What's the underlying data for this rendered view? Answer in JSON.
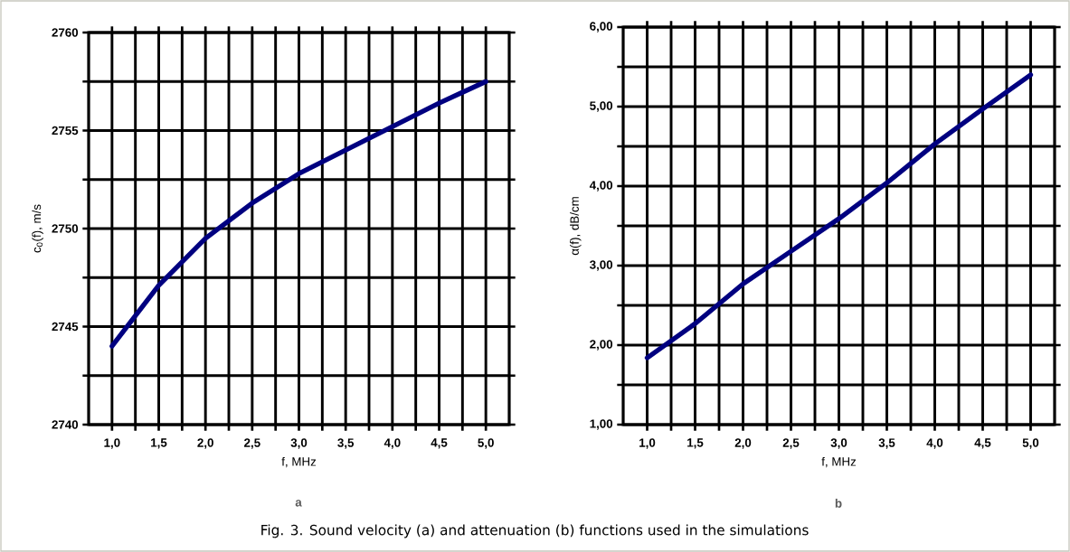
{
  "chart_data": [
    {
      "type": "line",
      "xlabel": "f, MHz",
      "ylabel": "c$_{0}$(f), m/s",
      "annotations": [
        "a"
      ],
      "x": [
        1.0,
        1.5,
        2.0,
        2.5,
        3.0,
        3.5,
        4.0,
        4.5,
        5.0
      ],
      "series": [
        {
          "color": "#000080",
          "values": [
            2744.0,
            2747.1,
            2749.5,
            2751.3,
            2752.8,
            2754.0,
            2755.2,
            2756.4,
            2757.5
          ]
        }
      ],
      "xlim": [
        0.75,
        5.25
      ],
      "xticks": [
        {
          "value": 1.0,
          "label": "1,0"
        },
        {
          "value": 1.5,
          "label": "1,5"
        },
        {
          "value": 2.0,
          "label": "2,0"
        },
        {
          "value": 2.5,
          "label": "2,5"
        },
        {
          "value": 3.0,
          "label": "3,0"
        },
        {
          "value": 3.5,
          "label": "3,5"
        },
        {
          "value": 4.0,
          "label": "4,0"
        },
        {
          "value": 4.5,
          "label": "4,5"
        },
        {
          "value": 5.0,
          "label": "5,0"
        }
      ],
      "ylim": [
        2740,
        2760
      ],
      "yticks": [
        2740,
        2745,
        2750,
        2755,
        2760
      ],
      "grid": true,
      "marker": "none",
      "line_style": "solid"
    },
    {
      "type": "line",
      "xlabel": "f, MHz",
      "ylabel": "α(f), dB/cm",
      "annotations": [
        "b",
        "Fig. 3. Sound velocity (a) and attenuation (b) functions used in the simulations"
      ],
      "x": [
        1.0,
        1.5,
        2.0,
        2.5,
        3.0,
        3.5,
        4.0,
        4.5,
        5.0
      ],
      "series": [
        {
          "color": "#000080",
          "values": [
            1.84,
            2.27,
            2.77,
            3.18,
            3.59,
            4.04,
            4.53,
            4.97,
            5.4
          ]
        }
      ],
      "xlim": [
        0.75,
        5.25
      ],
      "xticks": [
        {
          "value": 1.0,
          "label": "1,0"
        },
        {
          "value": 1.5,
          "label": "1,5"
        },
        {
          "value": 2.0,
          "label": "2,0"
        },
        {
          "value": 2.5,
          "label": "2,5"
        },
        {
          "value": 3.0,
          "label": "3,0"
        },
        {
          "value": 3.5,
          "label": "3,5"
        },
        {
          "value": 4.0,
          "label": "4,0"
        },
        {
          "value": 4.5,
          "label": "4,5"
        },
        {
          "value": 5.0,
          "label": "5,0"
        }
      ],
      "ylim": [
        1,
        6
      ],
      "yticks": [
        {
          "value": 1,
          "label": "1,00"
        },
        {
          "value": 2,
          "label": "2,00"
        },
        {
          "value": 3,
          "label": "3,00"
        },
        {
          "value": 4,
          "label": "4,00"
        },
        {
          "value": 5,
          "label": "5,00"
        },
        {
          "value": 6,
          "label": "6,00"
        }
      ],
      "grid": true,
      "marker": "none",
      "line_style": "solid"
    }
  ]
}
